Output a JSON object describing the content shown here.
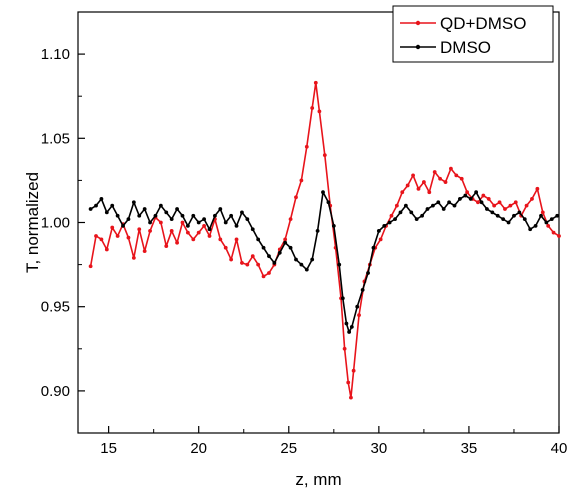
{
  "chart_data": {
    "type": "line",
    "title": "",
    "xlabel": "z, mm",
    "ylabel": "T, normalized",
    "xlim": [
      13.3,
      40
    ],
    "ylim": [
      0.875,
      1.125
    ],
    "x_ticks": [
      15,
      20,
      25,
      30,
      35,
      40
    ],
    "y_ticks": [
      0.9,
      0.95,
      1.0,
      1.05,
      1.1
    ],
    "x_tick_labels": [
      "15",
      "20",
      "25",
      "30",
      "35",
      "40"
    ],
    "y_tick_labels": [
      "0.90",
      "0.95",
      "1.00",
      "1.05",
      "1.10"
    ],
    "grid": false,
    "legend_position": "top-right",
    "series": [
      {
        "name": "QD+DMSO",
        "color": "#e8141b",
        "points": [
          [
            14.0,
            0.974
          ],
          [
            14.3,
            0.992
          ],
          [
            14.6,
            0.99
          ],
          [
            14.9,
            0.984
          ],
          [
            15.2,
            0.997
          ],
          [
            15.5,
            0.992
          ],
          [
            15.8,
            0.999
          ],
          [
            16.1,
            0.991
          ],
          [
            16.4,
            0.979
          ],
          [
            16.7,
            0.996
          ],
          [
            17.0,
            0.983
          ],
          [
            17.3,
            0.995
          ],
          [
            17.6,
            1.003
          ],
          [
            17.9,
            1.0
          ],
          [
            18.2,
            0.986
          ],
          [
            18.5,
            0.995
          ],
          [
            18.8,
            0.988
          ],
          [
            19.1,
            1.0
          ],
          [
            19.4,
            0.994
          ],
          [
            19.7,
            0.99
          ],
          [
            20.0,
            0.994
          ],
          [
            20.3,
            0.998
          ],
          [
            20.6,
            0.992
          ],
          [
            20.9,
            1.002
          ],
          [
            21.2,
            0.99
          ],
          [
            21.5,
            0.985
          ],
          [
            21.8,
            0.978
          ],
          [
            22.1,
            0.99
          ],
          [
            22.4,
            0.976
          ],
          [
            22.7,
            0.975
          ],
          [
            23.0,
            0.98
          ],
          [
            23.3,
            0.975
          ],
          [
            23.6,
            0.968
          ],
          [
            23.9,
            0.97
          ],
          [
            24.2,
            0.975
          ],
          [
            24.5,
            0.984
          ],
          [
            24.8,
            0.99
          ],
          [
            25.1,
            1.002
          ],
          [
            25.4,
            1.015
          ],
          [
            25.7,
            1.025
          ],
          [
            26.0,
            1.045
          ],
          [
            26.3,
            1.068
          ],
          [
            26.5,
            1.083
          ],
          [
            26.7,
            1.066
          ],
          [
            27.0,
            1.04
          ],
          [
            27.3,
            1.01
          ],
          [
            27.6,
            0.985
          ],
          [
            27.9,
            0.955
          ],
          [
            28.1,
            0.925
          ],
          [
            28.3,
            0.905
          ],
          [
            28.45,
            0.896
          ],
          [
            28.6,
            0.912
          ],
          [
            28.9,
            0.945
          ],
          [
            29.2,
            0.965
          ],
          [
            29.5,
            0.975
          ],
          [
            29.8,
            0.985
          ],
          [
            30.1,
            0.99
          ],
          [
            30.4,
            0.998
          ],
          [
            30.7,
            1.004
          ],
          [
            31.0,
            1.01
          ],
          [
            31.3,
            1.018
          ],
          [
            31.6,
            1.022
          ],
          [
            31.9,
            1.028
          ],
          [
            32.2,
            1.02
          ],
          [
            32.5,
            1.024
          ],
          [
            32.8,
            1.018
          ],
          [
            33.1,
            1.03
          ],
          [
            33.4,
            1.026
          ],
          [
            33.7,
            1.024
          ],
          [
            34.0,
            1.032
          ],
          [
            34.3,
            1.028
          ],
          [
            34.6,
            1.026
          ],
          [
            34.9,
            1.018
          ],
          [
            35.2,
            1.014
          ],
          [
            35.5,
            1.012
          ],
          [
            35.8,
            1.016
          ],
          [
            36.1,
            1.014
          ],
          [
            36.4,
            1.01
          ],
          [
            36.7,
            1.012
          ],
          [
            37.0,
            1.008
          ],
          [
            37.3,
            1.01
          ],
          [
            37.6,
            1.012
          ],
          [
            37.9,
            1.004
          ],
          [
            38.2,
            1.01
          ],
          [
            38.5,
            1.014
          ],
          [
            38.8,
            1.02
          ],
          [
            39.1,
            1.006
          ],
          [
            39.4,
            0.998
          ],
          [
            39.7,
            0.994
          ],
          [
            40.0,
            0.992
          ]
        ]
      },
      {
        "name": "DMSO",
        "color": "#000000",
        "points": [
          [
            14.0,
            1.008
          ],
          [
            14.3,
            1.01
          ],
          [
            14.6,
            1.014
          ],
          [
            14.9,
            1.006
          ],
          [
            15.2,
            1.01
          ],
          [
            15.5,
            1.004
          ],
          [
            15.8,
            0.998
          ],
          [
            16.1,
            1.002
          ],
          [
            16.4,
            1.012
          ],
          [
            16.7,
            1.004
          ],
          [
            17.0,
            1.008
          ],
          [
            17.3,
            1.0
          ],
          [
            17.6,
            1.004
          ],
          [
            17.9,
            1.01
          ],
          [
            18.2,
            1.006
          ],
          [
            18.5,
            1.002
          ],
          [
            18.8,
            1.008
          ],
          [
            19.1,
            1.004
          ],
          [
            19.4,
            0.998
          ],
          [
            19.7,
            1.004
          ],
          [
            20.0,
            1.0
          ],
          [
            20.3,
            1.002
          ],
          [
            20.6,
            0.996
          ],
          [
            20.9,
            1.004
          ],
          [
            21.2,
            1.008
          ],
          [
            21.5,
            1.0
          ],
          [
            21.8,
            1.004
          ],
          [
            22.1,
            0.998
          ],
          [
            22.4,
            1.006
          ],
          [
            22.7,
            1.002
          ],
          [
            23.0,
            0.996
          ],
          [
            23.3,
            0.99
          ],
          [
            23.6,
            0.985
          ],
          [
            23.9,
            0.98
          ],
          [
            24.2,
            0.976
          ],
          [
            24.5,
            0.982
          ],
          [
            24.8,
            0.988
          ],
          [
            25.1,
            0.985
          ],
          [
            25.4,
            0.978
          ],
          [
            25.7,
            0.975
          ],
          [
            26.0,
            0.972
          ],
          [
            26.3,
            0.978
          ],
          [
            26.6,
            0.995
          ],
          [
            26.9,
            1.018
          ],
          [
            27.2,
            1.012
          ],
          [
            27.5,
            0.998
          ],
          [
            27.8,
            0.975
          ],
          [
            28.0,
            0.955
          ],
          [
            28.2,
            0.94
          ],
          [
            28.35,
            0.935
          ],
          [
            28.5,
            0.938
          ],
          [
            28.8,
            0.95
          ],
          [
            29.1,
            0.96
          ],
          [
            29.4,
            0.97
          ],
          [
            29.7,
            0.985
          ],
          [
            30.0,
            0.995
          ],
          [
            30.3,
            0.998
          ],
          [
            30.6,
            1.0
          ],
          [
            30.9,
            1.002
          ],
          [
            31.2,
            1.006
          ],
          [
            31.5,
            1.01
          ],
          [
            31.8,
            1.006
          ],
          [
            32.1,
            1.002
          ],
          [
            32.4,
            1.004
          ],
          [
            32.7,
            1.008
          ],
          [
            33.0,
            1.01
          ],
          [
            33.3,
            1.012
          ],
          [
            33.6,
            1.008
          ],
          [
            33.9,
            1.012
          ],
          [
            34.2,
            1.01
          ],
          [
            34.5,
            1.014
          ],
          [
            34.8,
            1.016
          ],
          [
            35.1,
            1.014
          ],
          [
            35.4,
            1.018
          ],
          [
            35.7,
            1.012
          ],
          [
            36.0,
            1.008
          ],
          [
            36.3,
            1.006
          ],
          [
            36.6,
            1.004
          ],
          [
            36.9,
            1.002
          ],
          [
            37.2,
            1.0
          ],
          [
            37.5,
            1.004
          ],
          [
            37.8,
            1.006
          ],
          [
            38.1,
            1.002
          ],
          [
            38.4,
            0.996
          ],
          [
            38.7,
            0.998
          ],
          [
            39.0,
            1.004
          ],
          [
            39.3,
            1.0
          ],
          [
            39.6,
            1.002
          ],
          [
            39.9,
            1.004
          ]
        ]
      }
    ]
  }
}
